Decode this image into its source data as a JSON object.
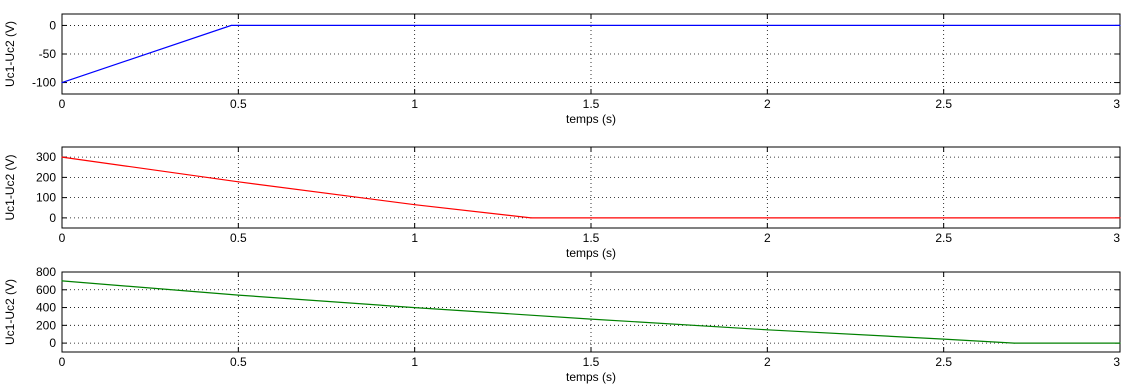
{
  "chart_data": [
    {
      "type": "line",
      "title": "",
      "xlabel": "temps (s)",
      "ylabel": "Uc1-Uc2 (V)",
      "xlim": [
        0,
        3
      ],
      "ylim": [
        -120,
        20
      ],
      "xticks": [
        0,
        0.5,
        1,
        1.5,
        2,
        2.5,
        3
      ],
      "xtick_labels": [
        "0",
        "0.5",
        "1",
        "1.5",
        "2",
        "2.5",
        "3"
      ],
      "yticks": [
        0,
        -50,
        -100
      ],
      "ytick_labels": [
        "0",
        "-50",
        "-100"
      ],
      "grid": true,
      "color": "#0000ff",
      "series": [
        {
          "x": [
            0,
            0.48,
            0.5,
            1,
            1.5,
            2,
            2.5,
            3
          ],
          "y": [
            -100,
            0,
            0,
            0,
            0,
            0,
            0,
            0
          ]
        }
      ]
    },
    {
      "type": "line",
      "title": "",
      "xlabel": "temps (s)",
      "ylabel": "Uc1-Uc2 (V)",
      "xlim": [
        0,
        3
      ],
      "ylim": [
        -50,
        350
      ],
      "xticks": [
        0,
        0.5,
        1,
        1.5,
        2,
        2.5,
        3
      ],
      "xtick_labels": [
        "0",
        "0.5",
        "1",
        "1.5",
        "2",
        "2.5",
        "3"
      ],
      "yticks": [
        300,
        200,
        100,
        0
      ],
      "ytick_labels": [
        "300",
        "200",
        "100",
        "0"
      ],
      "grid": true,
      "color": "#ff0000",
      "series": [
        {
          "x": [
            0,
            0.5,
            1,
            1.33,
            1.5,
            2,
            2.5,
            3
          ],
          "y": [
            300,
            178,
            65,
            0,
            0,
            0,
            0,
            0
          ]
        }
      ]
    },
    {
      "type": "line",
      "title": "",
      "xlabel": "temps (s)",
      "ylabel": "Uc1-Uc2 (V)",
      "xlim": [
        0,
        3
      ],
      "ylim": [
        -100,
        800
      ],
      "xticks": [
        0,
        0.5,
        1,
        1.5,
        2,
        2.5,
        3
      ],
      "xtick_labels": [
        "0",
        "0.5",
        "1",
        "1.5",
        "2",
        "2.5",
        "3"
      ],
      "yticks": [
        800,
        600,
        400,
        200,
        0
      ],
      "ytick_labels": [
        "800",
        "600",
        "400",
        "200",
        "0"
      ],
      "grid": true,
      "color": "#008000",
      "series": [
        {
          "x": [
            0,
            0.5,
            1,
            1.5,
            2,
            2.5,
            2.7,
            3
          ],
          "y": [
            700,
            540,
            400,
            270,
            150,
            45,
            0,
            0
          ]
        }
      ]
    }
  ]
}
